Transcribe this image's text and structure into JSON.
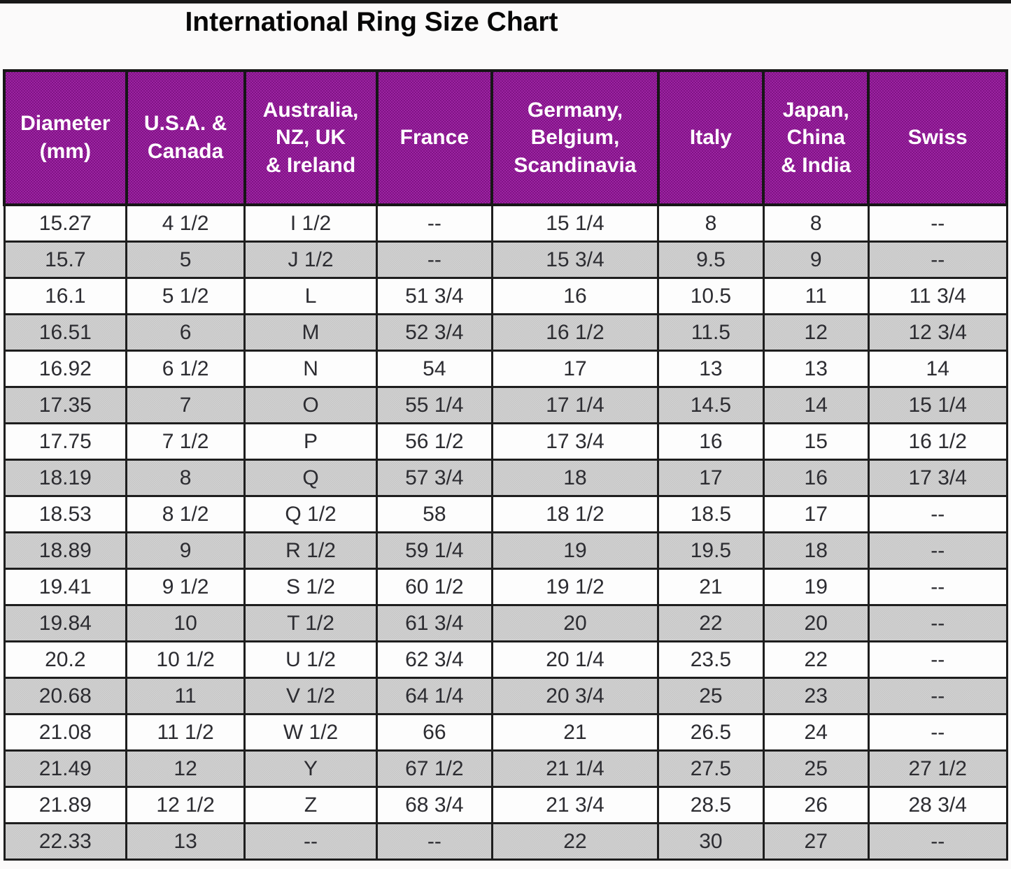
{
  "page": {
    "title": "International Ring Size Chart"
  },
  "colors": {
    "header_purple": "#8F1C96",
    "row_gray": "#CBCBCB",
    "row_white": "#FDFDFD",
    "border_dark": "#1A1A1A",
    "header_text": "#FFFFFF",
    "body_text": "#2C2C31"
  },
  "table": {
    "display_headers": [
      "Diameter\n(mm)",
      "U.S.A. &\nCanada",
      "Australia,\nNZ, UK\n& Ireland",
      "France",
      "Germany,\nBelgium,\nScandinavia",
      "Italy",
      "Japan,\nChina\n& India",
      "Swiss"
    ]
  },
  "chart_data": {
    "type": "table",
    "title": "International Ring Size Chart",
    "columns": [
      "Diameter (mm)",
      "U.S.A. & Canada",
      "Australia, NZ, UK & Ireland",
      "France",
      "Germany, Belgium, Scandinavia",
      "Italy",
      "Japan, China & India",
      "Swiss"
    ],
    "rows": [
      [
        "15.27",
        "4 1/2",
        "I 1/2",
        "--",
        "15 1/4",
        "8",
        "8",
        "--"
      ],
      [
        "15.7",
        "5",
        "J 1/2",
        "--",
        "15 3/4",
        "9.5",
        "9",
        "--"
      ],
      [
        "16.1",
        "5 1/2",
        "L",
        "51 3/4",
        "16",
        "10.5",
        "11",
        "11 3/4"
      ],
      [
        "16.51",
        "6",
        "M",
        "52 3/4",
        "16 1/2",
        "11.5",
        "12",
        "12 3/4"
      ],
      [
        "16.92",
        "6 1/2",
        "N",
        "54",
        "17",
        "13",
        "13",
        "14"
      ],
      [
        "17.35",
        "7",
        "O",
        "55 1/4",
        "17 1/4",
        "14.5",
        "14",
        "15 1/4"
      ],
      [
        "17.75",
        "7 1/2",
        "P",
        "56 1/2",
        "17 3/4",
        "16",
        "15",
        "16 1/2"
      ],
      [
        "18.19",
        "8",
        "Q",
        "57 3/4",
        "18",
        "17",
        "16",
        "17 3/4"
      ],
      [
        "18.53",
        "8 1/2",
        "Q 1/2",
        "58",
        "18 1/2",
        "18.5",
        "17",
        "--"
      ],
      [
        "18.89",
        "9",
        "R 1/2",
        "59 1/4",
        "19",
        "19.5",
        "18",
        "--"
      ],
      [
        "19.41",
        "9 1/2",
        "S 1/2",
        "60 1/2",
        "19 1/2",
        "21",
        "19",
        "--"
      ],
      [
        "19.84",
        "10",
        "T 1/2",
        "61 3/4",
        "20",
        "22",
        "20",
        "--"
      ],
      [
        "20.2",
        "10 1/2",
        "U 1/2",
        "62 3/4",
        "20 1/4",
        "23.5",
        "22",
        "--"
      ],
      [
        "20.68",
        "11",
        "V 1/2",
        "64 1/4",
        "20 3/4",
        "25",
        "23",
        "--"
      ],
      [
        "21.08",
        "11 1/2",
        "W 1/2",
        "66",
        "21",
        "26.5",
        "24",
        "--"
      ],
      [
        "21.49",
        "12",
        "Y",
        "67 1/2",
        "21 1/4",
        "27.5",
        "25",
        "27 1/2"
      ],
      [
        "21.89",
        "12 1/2",
        "Z",
        "68 3/4",
        "21 3/4",
        "28.5",
        "26",
        "28 3/4"
      ],
      [
        "22.33",
        "13",
        "--",
        "--",
        "22",
        "30",
        "27",
        "--"
      ]
    ]
  }
}
